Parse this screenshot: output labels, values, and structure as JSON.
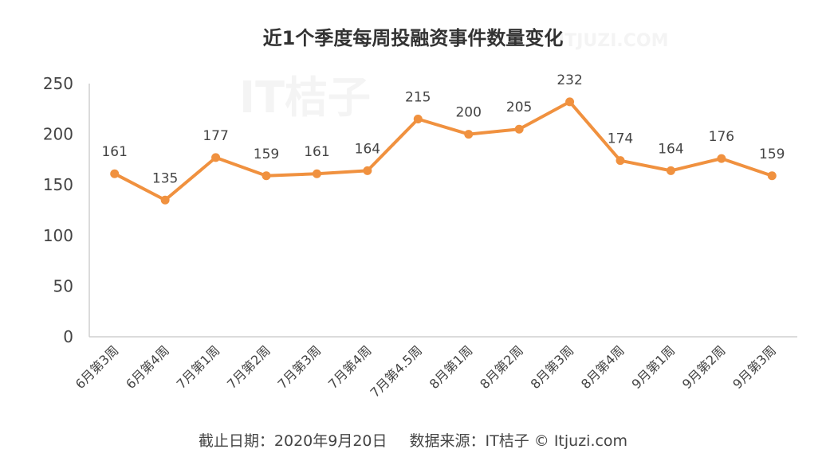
{
  "chart_data": {
    "type": "line",
    "title": "近1个季度每周投融资事件数量变化",
    "categories": [
      "6月第3周",
      "6月第4周",
      "7月第1周",
      "7月第2周",
      "7月第3周",
      "7月第4周",
      "7月第4.5周",
      "8月第1周",
      "8月第2周",
      "8月第3周",
      "8月第4周",
      "9月第1周",
      "9月第2周",
      "9月第3周"
    ],
    "series": [
      {
        "values": [
          161,
          135,
          177,
          159,
          161,
          164,
          215,
          200,
          205,
          232,
          174,
          164,
          176,
          159
        ]
      }
    ],
    "ylim": [
      0,
      250
    ],
    "yticks": [
      0,
      50,
      100,
      150,
      200,
      250
    ],
    "grid": false,
    "data_labels": true,
    "line_color": "#F0913F"
  },
  "footer": {
    "date": "截止日期：2020年9月20日",
    "source": "数据来源：IT桔子 © Itjuzi.com"
  },
  "watermark": {
    "text": "IT桔子",
    "sub": "ITJUZI.COM"
  }
}
